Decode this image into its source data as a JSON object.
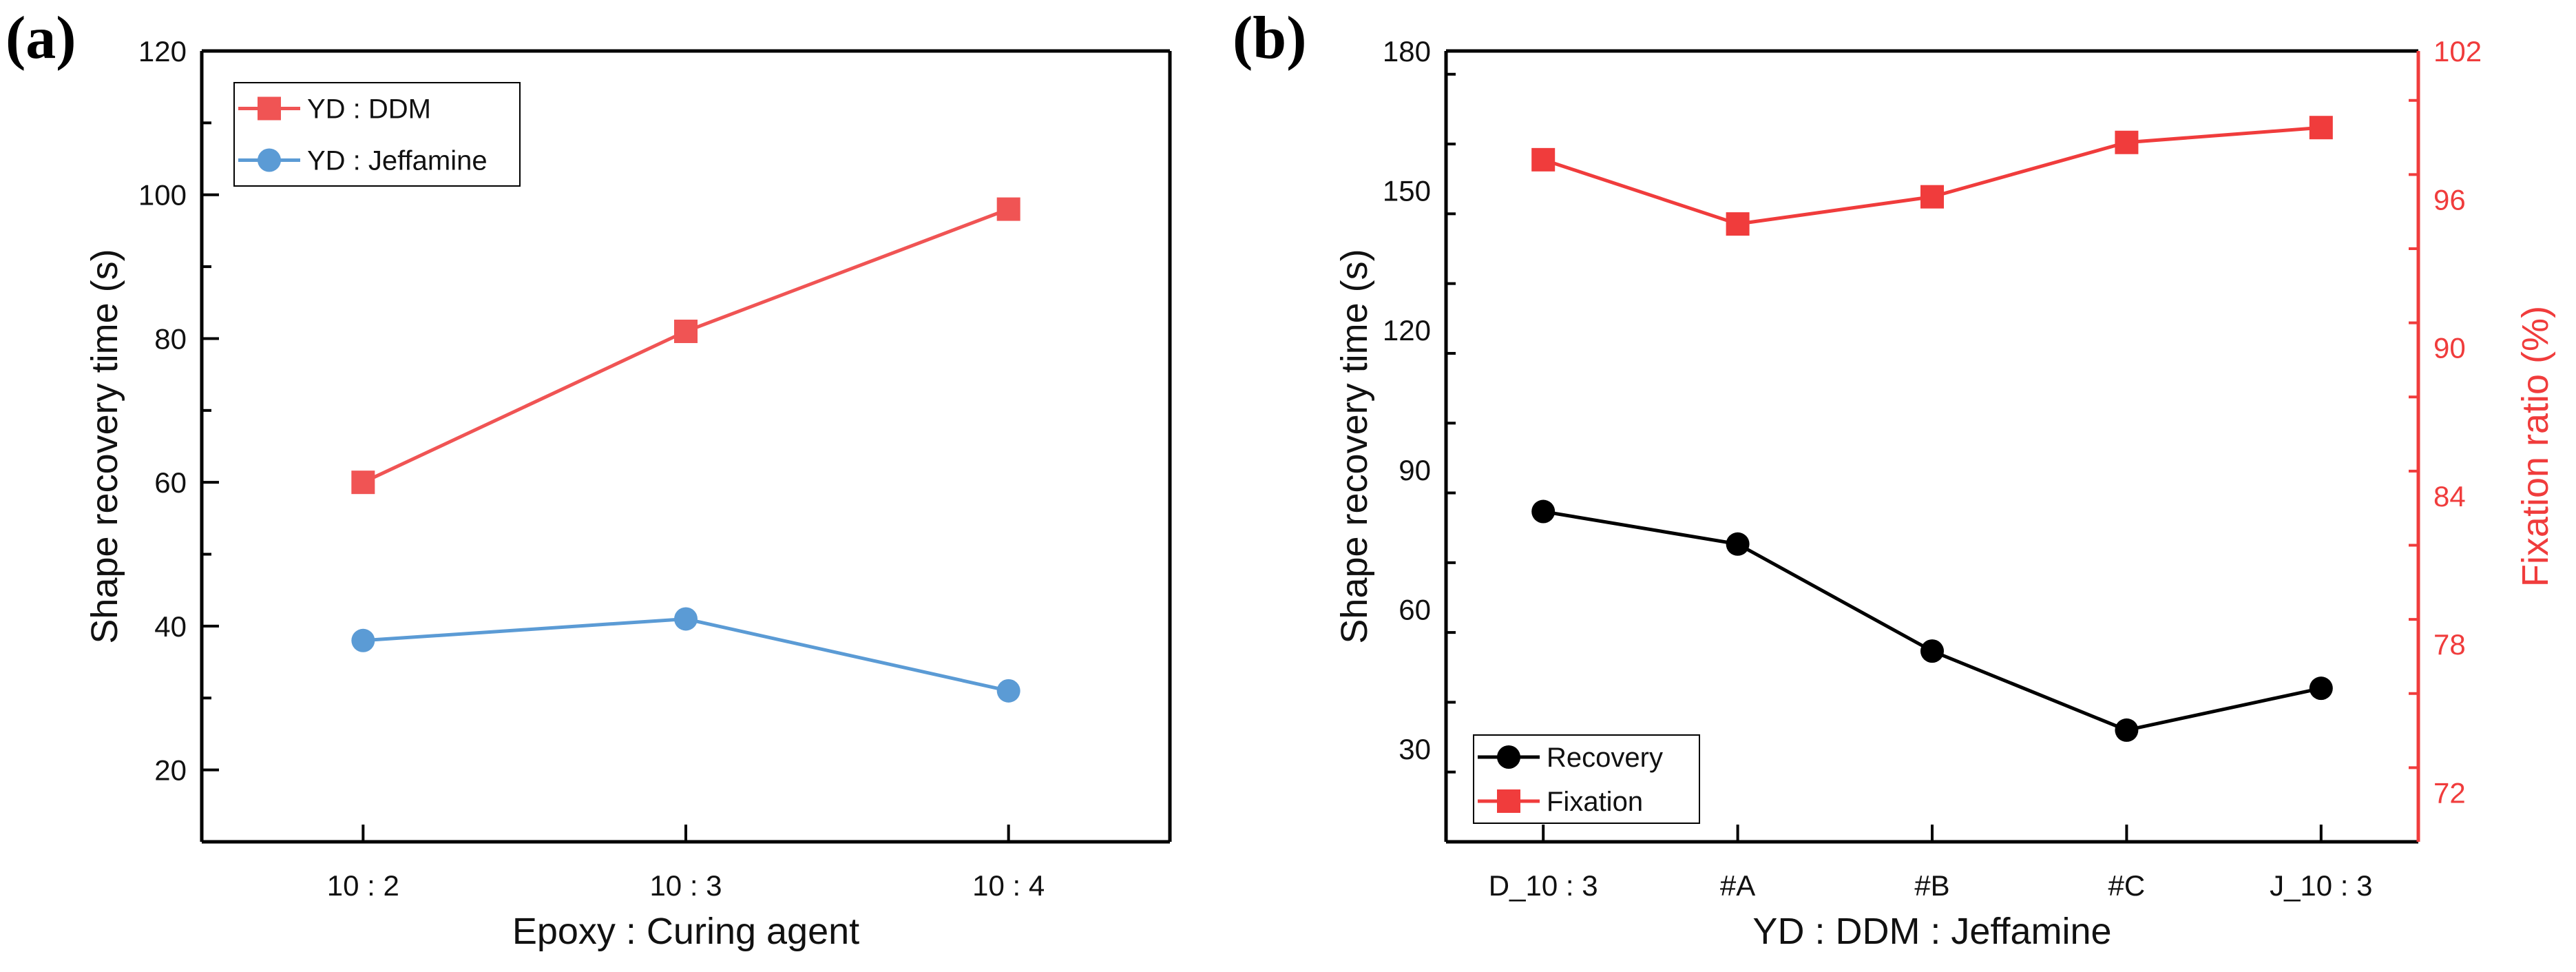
{
  "chart_data": [
    {
      "panel_label": "(a)",
      "type": "line",
      "xlabel": "Epoxy : Curing agent",
      "ylabel": "Shape recovery time (s)",
      "categories": [
        "10 : 2",
        "10 : 3",
        "10 : 4"
      ],
      "ylim": [
        10,
        120
      ],
      "yticks": [
        20,
        40,
        60,
        80,
        100,
        120
      ],
      "yminor_step": 10,
      "grid": false,
      "legend_position": "top-left",
      "series": [
        {
          "name": "YD : DDM",
          "marker": "square",
          "color": "#f05454",
          "axis": "left",
          "values": [
            60,
            81,
            98
          ]
        },
        {
          "name": "YD : Jeffamine",
          "marker": "circle",
          "color": "#5b9bd5",
          "axis": "left",
          "values": [
            38,
            41,
            31
          ]
        }
      ]
    },
    {
      "panel_label": "(b)",
      "type": "line",
      "xlabel": "YD : DDM : Jeffamine",
      "ylabel": "Shape recovery time (s)",
      "y2label": "Fixation ratio (%)",
      "categories": [
        "D_10 : 3",
        "#A",
        "#B",
        "#C",
        "J_10 : 3"
      ],
      "ylim": [
        10,
        180
      ],
      "yticks": [
        30,
        60,
        90,
        120,
        150,
        180
      ],
      "yminor_step": 15,
      "y2lim": [
        70,
        102
      ],
      "y2ticks": [
        72,
        78,
        84,
        90,
        96,
        102
      ],
      "y2minor_step": 3,
      "y2color": "#f03c3c",
      "grid": false,
      "legend_position": "bottom-left",
      "series": [
        {
          "name": "Recovery",
          "marker": "circle",
          "color": "#000000",
          "axis": "left",
          "values": [
            81,
            74,
            51,
            34,
            43
          ]
        },
        {
          "name": "Fixation",
          "marker": "square",
          "color": "#f03c3c",
          "axis": "right",
          "values": [
            97.6,
            95.0,
            96.1,
            98.3,
            98.9
          ]
        }
      ]
    }
  ]
}
